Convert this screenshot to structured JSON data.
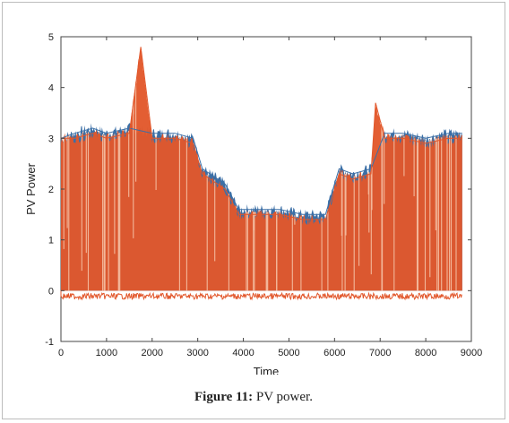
{
  "caption": {
    "label": "Figure 11:",
    "text": "PV power."
  },
  "chart_data": {
    "type": "line",
    "title": "",
    "xlabel": "Time",
    "ylabel": "PV Power",
    "xlim": [
      0,
      9000
    ],
    "ylim": [
      -1,
      5
    ],
    "xticks": [
      "0",
      "1000",
      "2000",
      "3000",
      "4000",
      "5000",
      "6000",
      "7000",
      "8000",
      "9000"
    ],
    "yticks": [
      "-1",
      "0",
      "1",
      "2",
      "3",
      "4",
      "5"
    ],
    "grid": false,
    "legend": "none",
    "series": [
      {
        "color": "#3b6fa6",
        "x": [
          0,
          300,
          700,
          1000,
          1500,
          2000,
          2500,
          2900,
          3100,
          3600,
          3900,
          4300,
          4800,
          5300,
          5800,
          6100,
          6400,
          6800,
          7100,
          7500,
          8000,
          8500,
          8800
        ],
        "y": [
          3.0,
          3.1,
          3.2,
          3.1,
          3.2,
          3.1,
          3.1,
          3.0,
          2.4,
          2.1,
          1.6,
          1.6,
          1.6,
          1.5,
          1.5,
          2.4,
          2.3,
          2.4,
          3.1,
          3.1,
          3.0,
          3.1,
          3.1
        ]
      },
      {
        "color": "#e2572b",
        "x": [
          0,
          300,
          700,
          1000,
          1500,
          1750,
          2000,
          2500,
          2900,
          3100,
          3600,
          3900,
          4300,
          4800,
          5300,
          5800,
          6100,
          6400,
          6800,
          6900,
          7100,
          7500,
          8000,
          8500,
          8800
        ],
        "y": [
          3.0,
          3.0,
          3.1,
          3.0,
          3.1,
          4.8,
          3.0,
          3.0,
          2.9,
          2.3,
          2.0,
          1.5,
          1.5,
          1.5,
          1.4,
          1.4,
          2.3,
          2.2,
          2.3,
          3.7,
          3.0,
          3.0,
          2.9,
          3.0,
          3.0
        ]
      }
    ]
  }
}
